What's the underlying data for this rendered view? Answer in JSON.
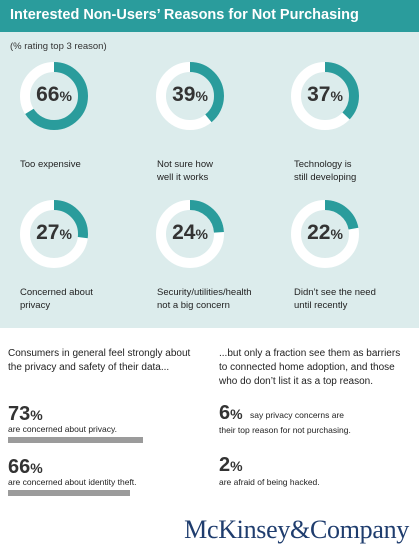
{
  "header": {
    "title": "Interested Non-Users’ Reasons for Not Purchasing"
  },
  "chart_data": {
    "type": "donut",
    "title": "Interested Non-Users’ Reasons for Not Purchasing",
    "subtitle": "(% rating top 3 reason)",
    "accent_color": "#2a9c9c",
    "track_color": "#ffffff",
    "items": [
      {
        "value": 66,
        "pct_text": "66",
        "label_lines": [
          "Too expensive"
        ]
      },
      {
        "value": 39,
        "pct_text": "39",
        "label_lines": [
          "Not sure how",
          "well it works"
        ]
      },
      {
        "value": 37,
        "pct_text": "37",
        "label_lines": [
          "Technology is",
          "still developing"
        ]
      },
      {
        "value": 27,
        "pct_text": "27",
        "label_lines": [
          "Concerned about",
          "privacy"
        ]
      },
      {
        "value": 24,
        "pct_text": "24",
        "label_lines": [
          "Security/utilities/health",
          "not a big concern"
        ]
      },
      {
        "value": 22,
        "pct_text": "22",
        "label_lines": [
          "Didn’t see the need",
          "until recently"
        ]
      }
    ]
  },
  "left_text": {
    "intro_lines": [
      "Consumers in general feel strongly about",
      "the privacy and safety of their data..."
    ],
    "stats": [
      {
        "number": "73",
        "desc": "are concerned about privacy.",
        "bar_fraction": 0.73
      },
      {
        "number": "66",
        "desc": "are concerned about identity theft.",
        "bar_fraction": 0.66
      }
    ]
  },
  "right_text": {
    "intro_lines": [
      "...but only a fraction see them as barriers",
      "to connected home adoption, and those",
      "who do don’t list it as a top reason."
    ],
    "stats": [
      {
        "number": "6",
        "line1": "say privacy concerns are",
        "line2": "their top reason for not purchasing."
      },
      {
        "number": "2",
        "desc": "are afraid of being hacked."
      }
    ]
  },
  "percent_sign": "%",
  "logo": {
    "text": "McKinsey&Company"
  },
  "colors": {
    "header_bg": "#2a9c9c",
    "panel_bg": "#dcecec",
    "bar": "#9b9b9b",
    "logo": "#1f3d6e"
  }
}
